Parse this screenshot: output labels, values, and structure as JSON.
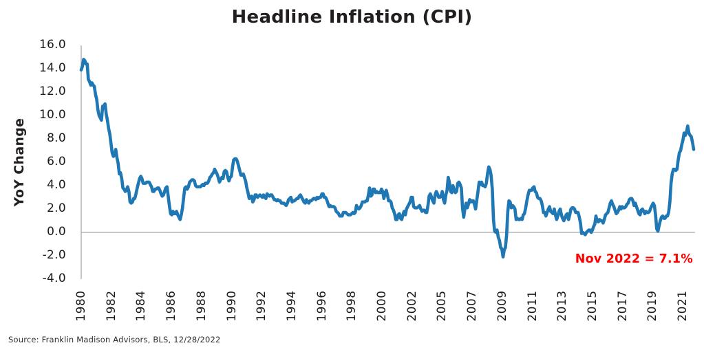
{
  "chart_data": {
    "type": "line",
    "title": "Headline Inflation (CPI)",
    "ylabel": "YoY Change",
    "xlabel": "",
    "ylim": [
      -4.0,
      16.0
    ],
    "ytick_step": 2.0,
    "ytick_labels": [
      "16.0",
      "14.0",
      "12.0",
      "10.0",
      "8.0",
      "6.0",
      "4.0",
      "2.0",
      "0.0",
      "-2.0",
      "-4.0"
    ],
    "xtick_labels": [
      "1980",
      "1982",
      "1984",
      "1986",
      "1988",
      "1990",
      "1992",
      "1994",
      "1996",
      "1998",
      "2000",
      "2002",
      "2005",
      "2007",
      "2009",
      "2011",
      "2013",
      "2015",
      "2017",
      "2019",
      "2021"
    ],
    "grid": "zero-baseline-only",
    "legend_position": "none",
    "x_start": "1980-01",
    "x_end": "2022-11",
    "x_frequency": "monthly",
    "annotation": {
      "text": "Nov 2022 = 7.1%",
      "color": "#fe0000"
    },
    "series": [
      {
        "name": "Headline CPI YoY % Change",
        "color": "#1f77b4",
        "values": [
          13.9,
          14.2,
          14.8,
          14.7,
          14.4,
          14.4,
          13.1,
          12.9,
          12.6,
          12.8,
          12.6,
          12.5,
          11.8,
          11.4,
          10.5,
          10.0,
          9.8,
          9.6,
          10.8,
          10.8,
          11.0,
          10.1,
          9.6,
          8.9,
          8.4,
          7.6,
          6.8,
          6.5,
          6.7,
          7.1,
          6.4,
          5.9,
          5.0,
          5.1,
          4.6,
          3.8,
          3.7,
          3.5,
          3.6,
          3.9,
          3.5,
          2.6,
          2.5,
          2.6,
          2.9,
          2.9,
          3.3,
          3.8,
          4.2,
          4.6,
          4.8,
          4.6,
          4.2,
          4.2,
          4.2,
          4.3,
          4.3,
          4.3,
          4.1,
          3.9,
          3.5,
          3.5,
          3.7,
          3.7,
          3.8,
          3.8,
          3.6,
          3.3,
          3.1,
          3.2,
          3.5,
          3.8,
          3.9,
          3.1,
          2.3,
          1.6,
          1.5,
          1.8,
          1.6,
          1.6,
          1.8,
          1.5,
          1.3,
          1.1,
          1.5,
          2.1,
          3.0,
          3.8,
          3.9,
          3.7,
          3.9,
          4.3,
          4.4,
          4.5,
          4.5,
          4.4,
          4.0,
          3.9,
          3.9,
          3.9,
          3.9,
          4.0,
          4.1,
          4.0,
          4.2,
          4.2,
          4.2,
          4.4,
          4.7,
          4.8,
          5.0,
          5.1,
          5.4,
          5.2,
          5.0,
          4.7,
          4.3,
          4.5,
          4.7,
          4.6,
          5.2,
          5.3,
          5.2,
          4.7,
          4.4,
          4.7,
          4.8,
          5.6,
          6.2,
          6.3,
          6.3,
          6.1,
          5.7,
          5.3,
          4.9,
          4.9,
          5.0,
          4.7,
          4.4,
          3.8,
          3.4,
          2.9,
          3.0,
          3.1,
          2.6,
          2.8,
          3.2,
          3.2,
          3.0,
          3.1,
          3.2,
          3.1,
          3.0,
          3.2,
          3.0,
          2.9,
          3.3,
          3.2,
          3.1,
          3.2,
          3.2,
          3.0,
          2.8,
          2.8,
          2.7,
          2.8,
          2.7,
          2.7,
          2.5,
          2.5,
          2.5,
          2.4,
          2.3,
          2.5,
          2.8,
          2.9,
          3.0,
          2.6,
          2.7,
          2.7,
          2.8,
          2.9,
          2.9,
          3.1,
          3.2,
          3.0,
          2.8,
          2.6,
          2.5,
          2.8,
          2.6,
          2.5,
          2.7,
          2.7,
          2.8,
          2.9,
          2.9,
          2.8,
          3.0,
          2.9,
          3.0,
          3.0,
          3.3,
          3.3,
          3.0,
          3.0,
          2.8,
          2.5,
          2.2,
          2.3,
          2.2,
          2.2,
          2.2,
          2.1,
          1.8,
          1.7,
          1.6,
          1.4,
          1.4,
          1.4,
          1.7,
          1.7,
          1.7,
          1.6,
          1.5,
          1.5,
          1.5,
          1.6,
          1.7,
          1.6,
          1.7,
          2.3,
          2.1,
          2.0,
          2.1,
          2.3,
          2.6,
          2.6,
          2.6,
          2.7,
          2.7,
          3.2,
          3.8,
          3.1,
          3.2,
          3.7,
          3.7,
          3.4,
          3.5,
          3.4,
          3.4,
          3.4,
          3.7,
          3.5,
          2.9,
          3.3,
          3.6,
          3.2,
          2.7,
          2.7,
          2.6,
          2.1,
          1.9,
          1.6,
          1.1,
          1.1,
          1.5,
          1.6,
          1.2,
          1.1,
          1.5,
          1.8,
          1.5,
          2.0,
          2.2,
          2.4,
          2.6,
          3.0,
          3.0,
          2.2,
          2.1,
          2.1,
          2.1,
          2.2,
          2.3,
          2.0,
          1.8,
          1.9,
          1.9,
          1.7,
          1.7,
          2.3,
          3.1,
          3.3,
          3.0,
          2.7,
          2.5,
          3.2,
          3.5,
          3.3,
          3.0,
          3.0,
          3.1,
          3.5,
          2.8,
          2.5,
          3.2,
          3.6,
          4.7,
          4.3,
          3.5,
          3.4,
          4.0,
          3.6,
          3.4,
          3.5,
          4.2,
          4.3,
          4.1,
          3.8,
          2.1,
          1.3,
          2.0,
          2.5,
          2.1,
          2.4,
          2.8,
          2.6,
          2.7,
          2.7,
          2.4,
          2.0,
          2.8,
          3.5,
          4.3,
          4.1,
          4.3,
          4.0,
          4.0,
          3.9,
          4.2,
          5.0,
          5.6,
          5.4,
          4.9,
          3.7,
          1.1,
          0.1,
          0.0,
          0.2,
          -0.4,
          -0.7,
          -1.3,
          -1.4,
          -2.1,
          -1.5,
          -1.3,
          -0.2,
          1.8,
          2.7,
          2.6,
          2.1,
          2.3,
          2.2,
          2.0,
          1.1,
          1.2,
          1.1,
          1.1,
          1.2,
          1.1,
          1.5,
          1.6,
          2.1,
          2.7,
          3.2,
          3.6,
          3.6,
          3.6,
          3.8,
          3.9,
          3.5,
          3.4,
          3.0,
          2.9,
          2.9,
          2.7,
          2.3,
          1.7,
          1.7,
          1.4,
          1.7,
          2.0,
          2.2,
          1.8,
          1.7,
          1.6,
          2.0,
          1.5,
          1.1,
          1.4,
          1.8,
          2.0,
          1.5,
          1.2,
          1.0,
          1.2,
          1.5,
          1.6,
          1.1,
          1.5,
          2.0,
          2.1,
          2.1,
          2.0,
          1.7,
          1.7,
          1.7,
          1.3,
          0.8,
          -0.1,
          0.0,
          -0.1,
          -0.2,
          0.0,
          0.1,
          0.2,
          0.2,
          0.0,
          0.2,
          0.5,
          0.7,
          1.4,
          1.0,
          0.9,
          1.1,
          1.0,
          1.0,
          0.8,
          1.1,
          1.5,
          1.6,
          1.7,
          2.1,
          2.5,
          2.7,
          2.4,
          2.2,
          1.9,
          1.6,
          1.7,
          1.9,
          2.2,
          2.0,
          2.2,
          2.1,
          2.1,
          2.2,
          2.4,
          2.5,
          2.8,
          2.9,
          2.9,
          2.7,
          2.3,
          2.5,
          2.2,
          1.9,
          1.6,
          1.5,
          1.9,
          2.0,
          1.8,
          1.6,
          1.8,
          1.7,
          1.7,
          1.8,
          2.1,
          2.3,
          2.5,
          2.3,
          1.5,
          0.3,
          0.1,
          0.6,
          1.0,
          1.3,
          1.4,
          1.2,
          1.2,
          1.4,
          1.4,
          1.7,
          2.6,
          4.2,
          5.0,
          5.4,
          5.4,
          5.3,
          5.4,
          6.2,
          6.8,
          7.0,
          7.5,
          7.9,
          8.5,
          8.3,
          8.6,
          9.1,
          8.5,
          8.3,
          8.2,
          7.7,
          7.1
        ]
      }
    ]
  },
  "footer": {
    "source_label": "Source: Franklin Madison Advisors, BLS, 12/28/2022"
  },
  "colors": {
    "line_blue": "#1f77b4",
    "axis_gray": "#a6a6a6",
    "title_text": "#231f20",
    "annotation_red": "#fe0000",
    "tick_text": "#1a1a1a",
    "background": "#ffffff"
  }
}
